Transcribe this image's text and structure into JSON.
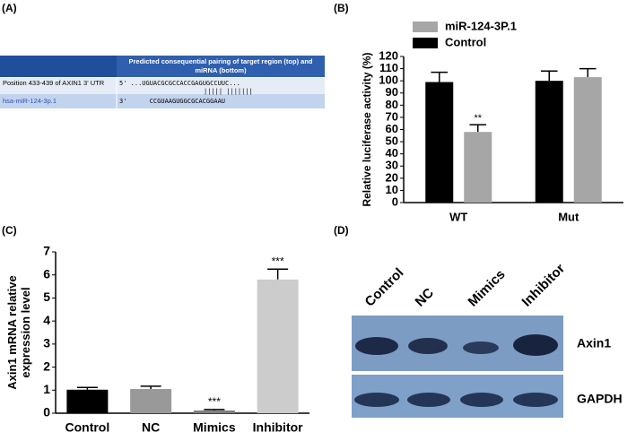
{
  "panel_labels": [
    "(A)",
    "(B)",
    "(C)",
    "(D)"
  ],
  "panel_a": {
    "header": "Predicted consequential pairing of target region (top) and miRNA (bottom)",
    "rows": [
      [
        "Position 433-439 of AXIN1 3' UTR",
        "5' ...UGUACGCGCCACCGAGUGCCUUC..."
      ],
      [
        "hsa-miR-124-3p.1",
        "3'      CCGUAAGUGGCGCACGGAAU"
      ]
    ],
    "pairing": "|||||  |||||||"
  },
  "chart_data": [
    {
      "type": "bar",
      "ylabel": "Relative luciferase activity (%)",
      "categories": [
        "WT",
        "Mut"
      ],
      "series": [
        {
          "name": "miR-124-3P.1",
          "color": "#a6a6a6",
          "values": [
            58,
            103
          ],
          "errors": [
            6,
            7
          ],
          "significance": [
            "**",
            null
          ]
        },
        {
          "name": "Control",
          "color": "#000000",
          "values": [
            99,
            100
          ],
          "errors": [
            8,
            8
          ],
          "significance": [
            null,
            null
          ]
        }
      ],
      "ylim": [
        0,
        120
      ],
      "yticks": [
        0,
        10,
        20,
        30,
        40,
        50,
        60,
        70,
        80,
        90,
        100,
        110,
        120
      ],
      "legend": "top"
    },
    {
      "type": "bar",
      "ylabel": "Axin1 mRNA relative expression level",
      "categories": [
        "Control",
        "NC",
        "Mimics",
        "Inhibitor"
      ],
      "values": [
        1.02,
        1.05,
        0.12,
        5.8
      ],
      "errors": [
        0.1,
        0.12,
        0.04,
        0.45
      ],
      "colors": [
        "#000000",
        "#999999",
        "#7f7f7f",
        "#cccccc"
      ],
      "significance": [
        null,
        null,
        "***",
        "***"
      ],
      "ylim": [
        0,
        7
      ],
      "yticks": [
        0,
        1,
        2,
        3,
        4,
        5,
        6,
        7
      ]
    }
  ],
  "panel_d": {
    "lanes": [
      "Control",
      "NC",
      "Mimics",
      "Inhibitor"
    ],
    "bands": [
      "Axin1",
      "GAPDH"
    ]
  }
}
